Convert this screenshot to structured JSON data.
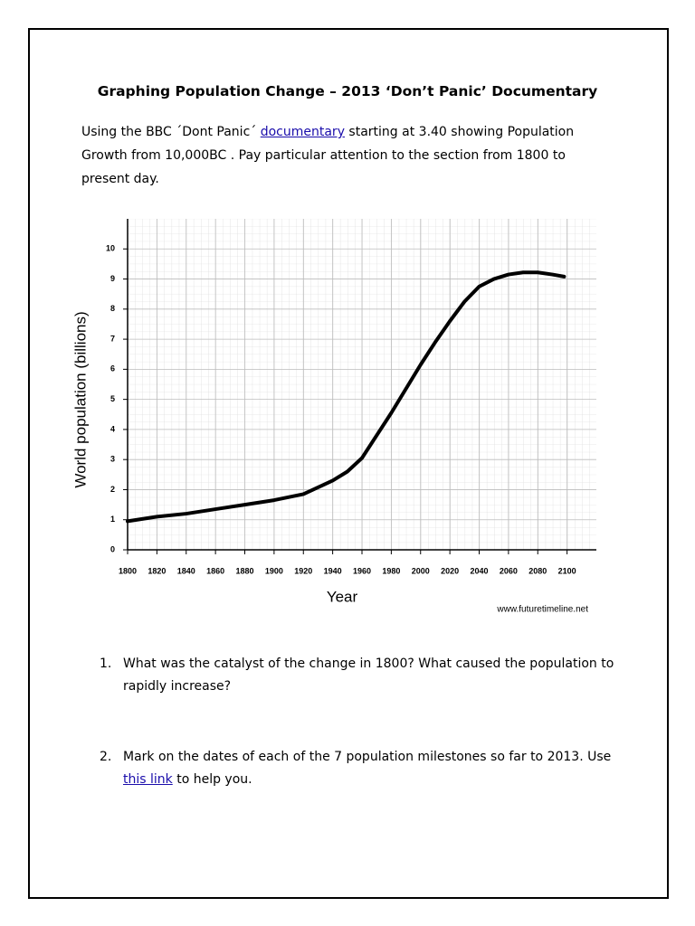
{
  "header": {
    "title": "Graphing Population Change – 2013 ‘Don’t Panic’ Documentary"
  },
  "intro": {
    "before_link": "Using the BBC ´Dont Panic´ ",
    "link": "documentary",
    "after_link": " starting at 3.40 showing Population Growth from 10,000BC . Pay particular attention to the section from 1800 to present day."
  },
  "chart_data": {
    "type": "line",
    "x_label": "Year",
    "y_label": "World population (billions)",
    "source": "www.futuretimeline.net",
    "x": [
      1800,
      1820,
      1840,
      1860,
      1880,
      1900,
      1920,
      1940,
      1950,
      1960,
      1970,
      1980,
      1990,
      2000,
      2010,
      2020,
      2030,
      2040,
      2050,
      2060,
      2070,
      2080,
      2090,
      2098
    ],
    "values": [
      0.95,
      1.1,
      1.2,
      1.35,
      1.5,
      1.65,
      1.85,
      2.3,
      2.6,
      3.05,
      3.8,
      4.55,
      5.35,
      6.15,
      6.9,
      7.6,
      8.25,
      8.75,
      9.0,
      9.15,
      9.22,
      9.22,
      9.15,
      9.08
    ],
    "color": "#000000",
    "xlim": [
      1800,
      2120
    ],
    "ylim": [
      0,
      11
    ],
    "xticks": [
      1800,
      1820,
      1840,
      1860,
      1880,
      1900,
      1920,
      1940,
      1960,
      1980,
      2000,
      2020,
      2040,
      2060,
      2080,
      2100
    ],
    "yticks": [
      0,
      1,
      2,
      3,
      4,
      5,
      6,
      7,
      8,
      9,
      10
    ],
    "grid": true
  },
  "questions": [
    {
      "number": "1.",
      "text": "What was the catalyst of the change in 1800? What caused the population to rapidly increase?"
    },
    {
      "number": "2.",
      "before_link": "Mark on the dates of each of the 7 population milestones so far to 2013. Use ",
      "link": "this link",
      "after_link": " to help you."
    }
  ]
}
